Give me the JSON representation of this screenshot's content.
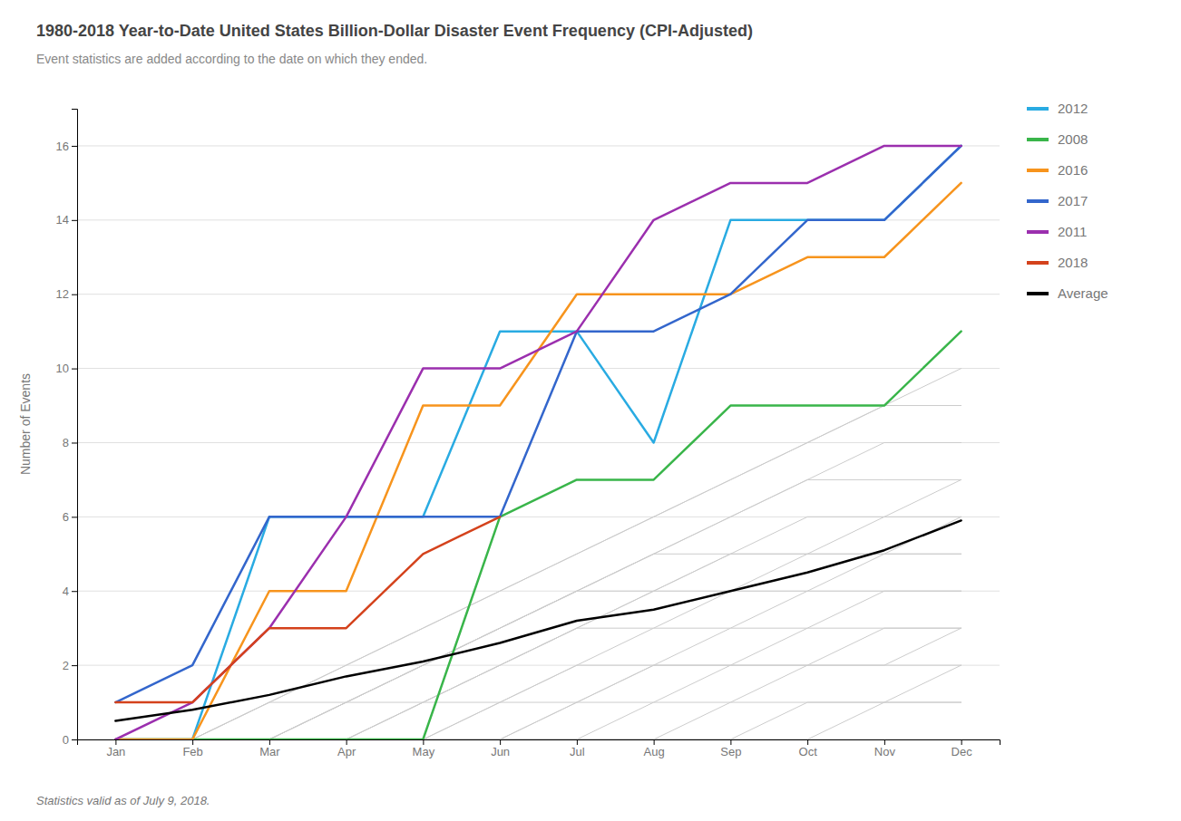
{
  "chart_data": {
    "type": "line",
    "title": "1980-2018 Year-to-Date United States Billion-Dollar Disaster Event Frequency (CPI-Adjusted)",
    "subtitle": "Event statistics are added according to the date on which they ended.",
    "footer": "Statistics valid as of July 9, 2018.",
    "ylabel": "Number of Events",
    "categories": [
      "Jan",
      "Feb",
      "Mar",
      "Apr",
      "May",
      "Jun",
      "Jul",
      "Aug",
      "Sep",
      "Oct",
      "Nov",
      "Dec"
    ],
    "ylim": [
      0,
      17
    ],
    "yticks": [
      0,
      2,
      4,
      6,
      8,
      10,
      12,
      14,
      16
    ],
    "grid": true,
    "legend": "right",
    "series": [
      {
        "color": "#cccccc",
        "values": [
          0,
          0,
          1,
          2,
          3,
          4,
          5,
          6,
          7,
          8,
          9,
          10
        ]
      },
      {
        "color": "#cccccc",
        "values": [
          0,
          0,
          1,
          2,
          3,
          4,
          5,
          6,
          7,
          8,
          9,
          9
        ]
      },
      {
        "color": "#cccccc",
        "values": [
          0,
          0,
          1,
          1,
          2,
          3,
          4,
          5,
          6,
          7,
          8,
          8
        ]
      },
      {
        "color": "#cccccc",
        "values": [
          0,
          0,
          0,
          1,
          2,
          3,
          4,
          5,
          6,
          7,
          7,
          7
        ]
      },
      {
        "color": "#cccccc",
        "values": [
          0,
          0,
          0,
          1,
          2,
          3,
          4,
          5,
          5,
          6,
          6,
          7
        ]
      },
      {
        "color": "#cccccc",
        "values": [
          0,
          0,
          0,
          1,
          2,
          3,
          4,
          4,
          5,
          5,
          6,
          6
        ]
      },
      {
        "color": "#cccccc",
        "values": [
          0,
          0,
          0,
          1,
          1,
          2,
          3,
          4,
          5,
          5,
          5,
          6
        ]
      },
      {
        "color": "#cccccc",
        "values": [
          0,
          0,
          0,
          0,
          1,
          2,
          3,
          4,
          4,
          5,
          5,
          5
        ]
      },
      {
        "color": "#cccccc",
        "values": [
          0,
          0,
          0,
          0,
          1,
          2,
          3,
          3,
          4,
          4,
          5,
          5
        ]
      },
      {
        "color": "#cccccc",
        "values": [
          0,
          0,
          0,
          0,
          1,
          1,
          2,
          3,
          3,
          4,
          4,
          4
        ]
      },
      {
        "color": "#cccccc",
        "values": [
          0,
          0,
          0,
          0,
          0,
          1,
          2,
          2,
          3,
          3,
          4,
          4
        ]
      },
      {
        "color": "#cccccc",
        "values": [
          0,
          0,
          0,
          0,
          0,
          1,
          1,
          2,
          2,
          3,
          3,
          3
        ]
      },
      {
        "color": "#cccccc",
        "values": [
          0,
          0,
          0,
          0,
          0,
          0,
          1,
          2,
          2,
          2,
          3,
          3
        ]
      },
      {
        "color": "#cccccc",
        "values": [
          0,
          0,
          0,
          0,
          0,
          0,
          1,
          1,
          2,
          2,
          2,
          3
        ]
      },
      {
        "color": "#cccccc",
        "values": [
          0,
          0,
          0,
          0,
          0,
          0,
          0,
          1,
          1,
          2,
          2,
          2
        ]
      },
      {
        "color": "#cccccc",
        "values": [
          0,
          0,
          0,
          0,
          0,
          0,
          0,
          0,
          1,
          1,
          1,
          2
        ]
      },
      {
        "color": "#cccccc",
        "values": [
          0,
          0,
          0,
          0,
          0,
          0,
          0,
          0,
          0,
          1,
          1,
          1
        ]
      },
      {
        "color": "#cccccc",
        "values": [
          0,
          0,
          0,
          0,
          0,
          0,
          0,
          0,
          0,
          0,
          1,
          1
        ]
      },
      {
        "name": "2012",
        "color": "#29ABE2",
        "values": [
          0,
          0,
          6,
          6,
          6,
          11,
          11,
          8,
          14,
          14,
          14,
          16
        ]
      },
      {
        "name": "2008",
        "color": "#39B54A",
        "values": [
          0,
          0,
          0,
          0,
          0,
          6,
          7,
          7,
          9,
          9,
          9,
          11
        ]
      },
      {
        "name": "2016",
        "color": "#F7941D",
        "values": [
          0,
          0,
          4,
          4,
          9,
          9,
          12,
          12,
          12,
          13,
          13,
          15
        ]
      },
      {
        "name": "2017",
        "color": "#3366CC",
        "values": [
          1,
          2,
          6,
          6,
          6,
          6,
          11,
          11,
          12,
          14,
          14,
          16
        ]
      },
      {
        "name": "2011",
        "color": "#9B2FAE",
        "values": [
          0,
          1,
          3,
          6,
          10,
          10,
          11,
          14,
          15,
          15,
          16,
          16
        ]
      },
      {
        "name": "2018",
        "color": "#D4421C",
        "values": [
          1,
          1,
          3,
          3,
          5,
          6,
          null,
          null,
          null,
          null,
          null,
          null
        ]
      },
      {
        "name": "Average",
        "color": "#000000",
        "values": [
          0.5,
          0.8,
          1.2,
          1.7,
          2.1,
          2.6,
          3.2,
          3.5,
          4.0,
          4.5,
          5.1,
          5.9
        ]
      }
    ]
  }
}
